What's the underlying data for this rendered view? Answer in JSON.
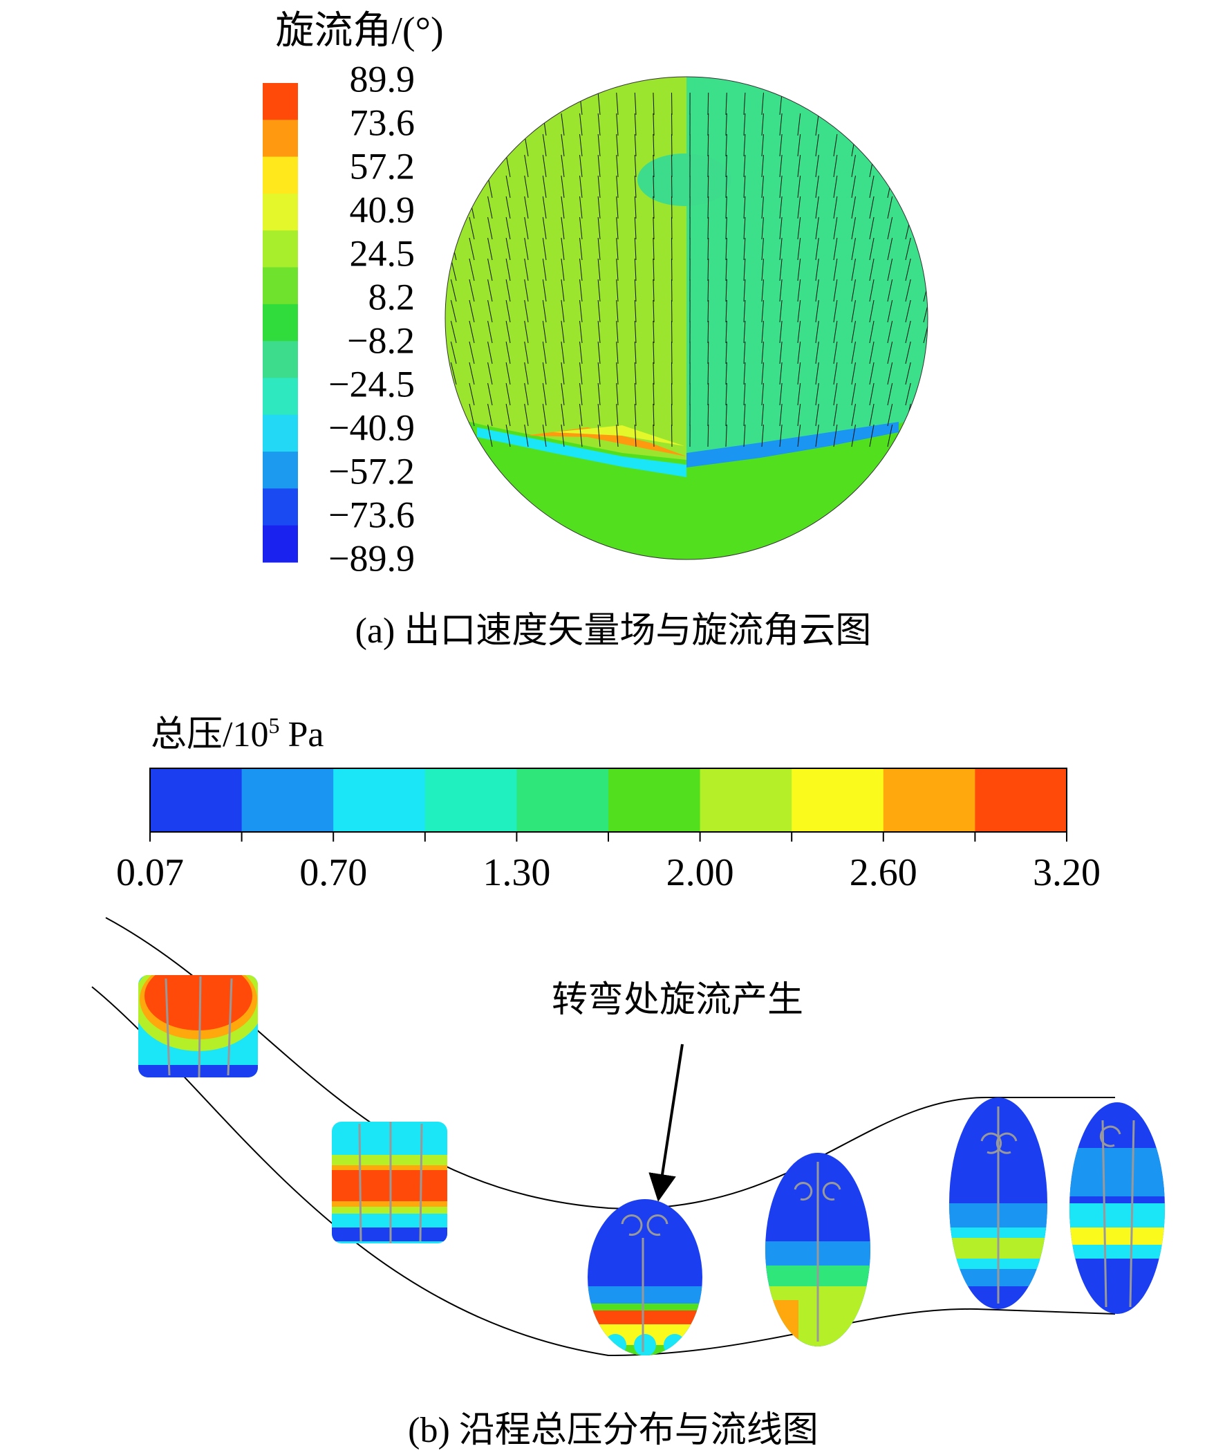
{
  "panel_a": {
    "colorbar": {
      "title": "旋流角/(°)",
      "labels": [
        "89.9",
        "73.6",
        "57.2",
        "40.9",
        "24.5",
        "8.2",
        "−8.2",
        "−24.5",
        "−40.9",
        "−57.2",
        "−73.6",
        "−89.9"
      ],
      "colors": [
        "#ff4a0a",
        "#ff9a10",
        "#ffe81c",
        "#e4f72a",
        "#a8ee2c",
        "#6ee22c",
        "#2fdc3c",
        "#3ddc8c",
        "#2ee8c0",
        "#22d8f5",
        "#1c9af0",
        "#1a4af2",
        "#1a22f0"
      ]
    },
    "caption": "(a) 出口速度矢量场与旋流角云图"
  },
  "panel_b": {
    "colorbar": {
      "title": "总压/10",
      "title_sup": "5",
      "title_unit": "Pa",
      "labels": [
        "0.07",
        "0.70",
        "1.30",
        "2.00",
        "2.60",
        "3.20"
      ],
      "colors": [
        "#1a3ef0",
        "#1a96f2",
        "#1ae6f8",
        "#20f0c0",
        "#2ee67a",
        "#52e01e",
        "#b4ef28",
        "#fafa1c",
        "#ffa80e",
        "#ff4a0a"
      ]
    },
    "annotation": "转弯处旋流产生",
    "caption": "(b) 沿程总压分布与流线图"
  }
}
